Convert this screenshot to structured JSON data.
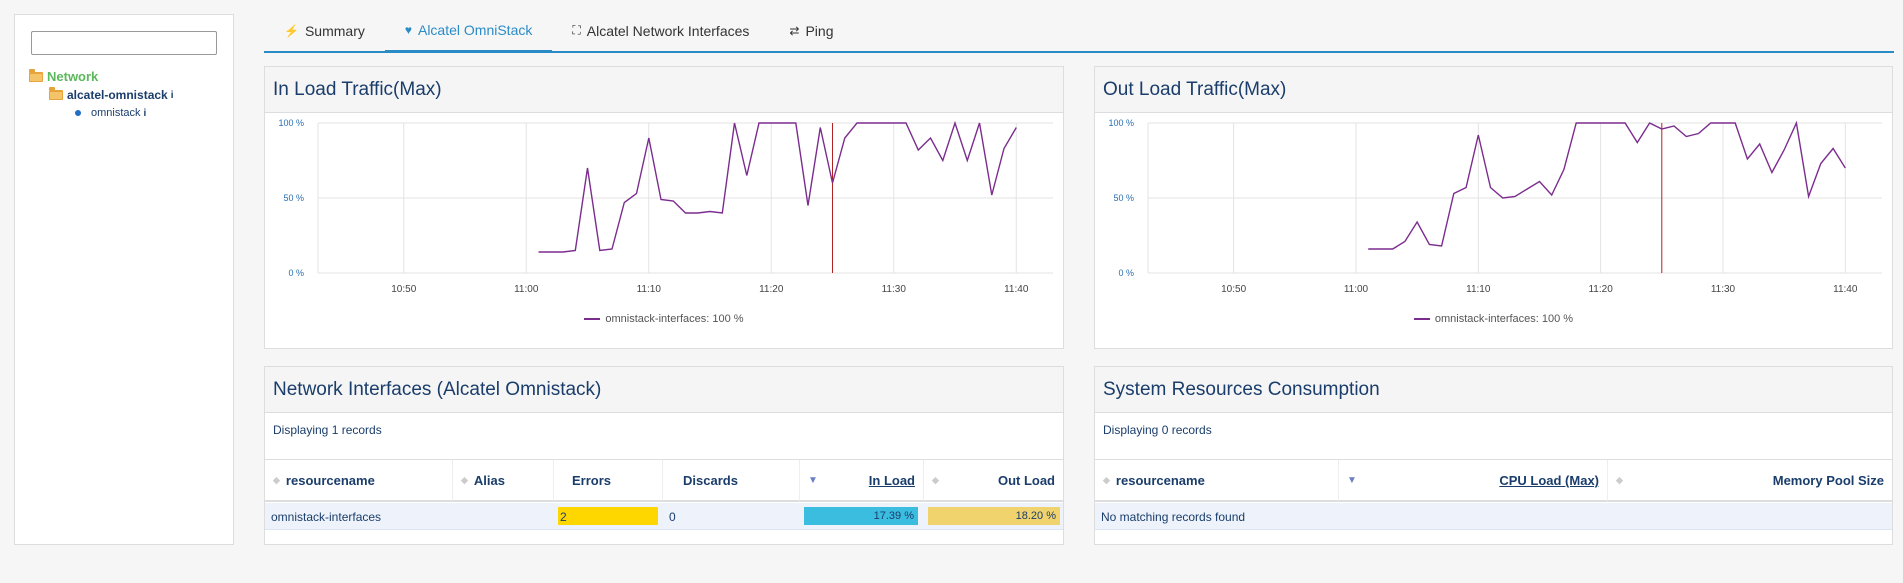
{
  "sidebar": {
    "search_placeholder": "",
    "tree": {
      "root": "Network",
      "child": "alcatel-omnistack",
      "leaf": "omnistack",
      "info_icon": "i"
    }
  },
  "tabs": [
    {
      "label": "Summary",
      "icon": "magic-wand-icon",
      "glyph": "⚡"
    },
    {
      "label": "Alcatel OmniStack",
      "icon": "heartbeat-icon",
      "glyph": "♥"
    },
    {
      "label": "Alcatel Network Interfaces",
      "icon": "sitemap-icon",
      "glyph": "⛶"
    },
    {
      "label": "Ping",
      "icon": "exchange-icon",
      "glyph": "⇄"
    }
  ],
  "active_tab": 1,
  "colors": {
    "accent": "#2a8cc6",
    "series": "#7b2d8e",
    "marker": "#b22222",
    "in_load_bar": "#3bbde0",
    "out_load_bar": "#f0d36d",
    "errors_bar": "#ffd700"
  },
  "charts": {
    "in_load": {
      "title": "In Load Traffic(Max)",
      "legend": "omnistack-interfaces: 100 %"
    },
    "out_load": {
      "title": "Out Load Traffic(Max)",
      "legend": "omnistack-interfaces: 100 %"
    }
  },
  "chart_data": [
    {
      "type": "line",
      "title": "In Load Traffic(Max)",
      "x_ticks": [
        "10:50",
        "11:00",
        "11:10",
        "11:20",
        "11:30",
        "11:40"
      ],
      "y_ticks": [
        "100 %",
        "50 %",
        "0 %"
      ],
      "ylim": [
        0,
        100
      ],
      "xlim": [
        "10:43",
        "11:43"
      ],
      "marker_at": "11:25",
      "series": [
        {
          "name": "omnistack-interfaces: 100 %",
          "x": [
            "11:01",
            "11:02",
            "11:03",
            "11:04",
            "11:05",
            "11:06",
            "11:07",
            "11:08",
            "11:09",
            "11:10",
            "11:11",
            "11:12",
            "11:13",
            "11:14",
            "11:15",
            "11:16",
            "11:17",
            "11:18",
            "11:19",
            "11:20",
            "11:21",
            "11:22",
            "11:23",
            "11:24",
            "11:25",
            "11:26",
            "11:27",
            "11:28",
            "11:29",
            "11:30",
            "11:31",
            "11:32",
            "11:33",
            "11:34",
            "11:35",
            "11:36",
            "11:37",
            "11:38",
            "11:39",
            "11:40"
          ],
          "y": [
            14,
            14,
            14,
            15,
            70,
            15,
            16,
            47,
            53,
            90,
            49,
            48,
            40,
            40,
            41,
            40,
            100,
            65,
            100,
            100,
            100,
            100,
            45,
            97,
            60,
            90,
            100,
            100,
            100,
            100,
            100,
            82,
            90,
            75,
            100,
            75,
            100,
            52,
            83,
            97
          ]
        }
      ]
    },
    {
      "type": "line",
      "title": "Out Load Traffic(Max)",
      "x_ticks": [
        "10:50",
        "11:00",
        "11:10",
        "11:20",
        "11:30",
        "11:40"
      ],
      "y_ticks": [
        "100 %",
        "50 %",
        "0 %"
      ],
      "ylim": [
        0,
        100
      ],
      "xlim": [
        "10:43",
        "11:43"
      ],
      "marker_at": "11:25",
      "series": [
        {
          "name": "omnistack-interfaces: 100 %",
          "x": [
            "11:01",
            "11:02",
            "11:03",
            "11:04",
            "11:05",
            "11:06",
            "11:07",
            "11:08",
            "11:09",
            "11:10",
            "11:11",
            "11:12",
            "11:13",
            "11:14",
            "11:15",
            "11:16",
            "11:17",
            "11:18",
            "11:19",
            "11:20",
            "11:21",
            "11:22",
            "11:23",
            "11:24",
            "11:25",
            "11:26",
            "11:27",
            "11:28",
            "11:29",
            "11:30",
            "11:31",
            "11:32",
            "11:33",
            "11:34",
            "11:35",
            "11:36",
            "11:37",
            "11:38",
            "11:39",
            "11:40"
          ],
          "y": [
            16,
            16,
            16,
            21,
            34,
            19,
            18,
            53,
            57,
            92,
            57,
            50,
            51,
            56,
            61,
            52,
            69,
            100,
            100,
            100,
            100,
            100,
            87,
            100,
            96,
            98,
            91,
            93,
            100,
            100,
            100,
            76,
            86,
            67,
            82,
            100,
            51,
            73,
            83,
            70
          ]
        }
      ]
    }
  ],
  "interfaces_table": {
    "title": "Network Interfaces (Alcatel Omnistack)",
    "records": "Displaying 1 records",
    "columns": [
      "resourcename",
      "Alias",
      "Errors",
      "Discards",
      "In Load",
      "Out Load"
    ],
    "rows": [
      {
        "resourcename": "omnistack-interfaces",
        "alias": "",
        "errors": "2",
        "discards": "0",
        "in_load": "17.39 %",
        "out_load": "18.20 %"
      }
    ]
  },
  "resources_table": {
    "title": "System Resources Consumption",
    "records": "Displaying 0 records",
    "columns": [
      "resourcename",
      "CPU Load (Max)",
      "Memory Pool Size"
    ],
    "empty": "No matching records found"
  }
}
